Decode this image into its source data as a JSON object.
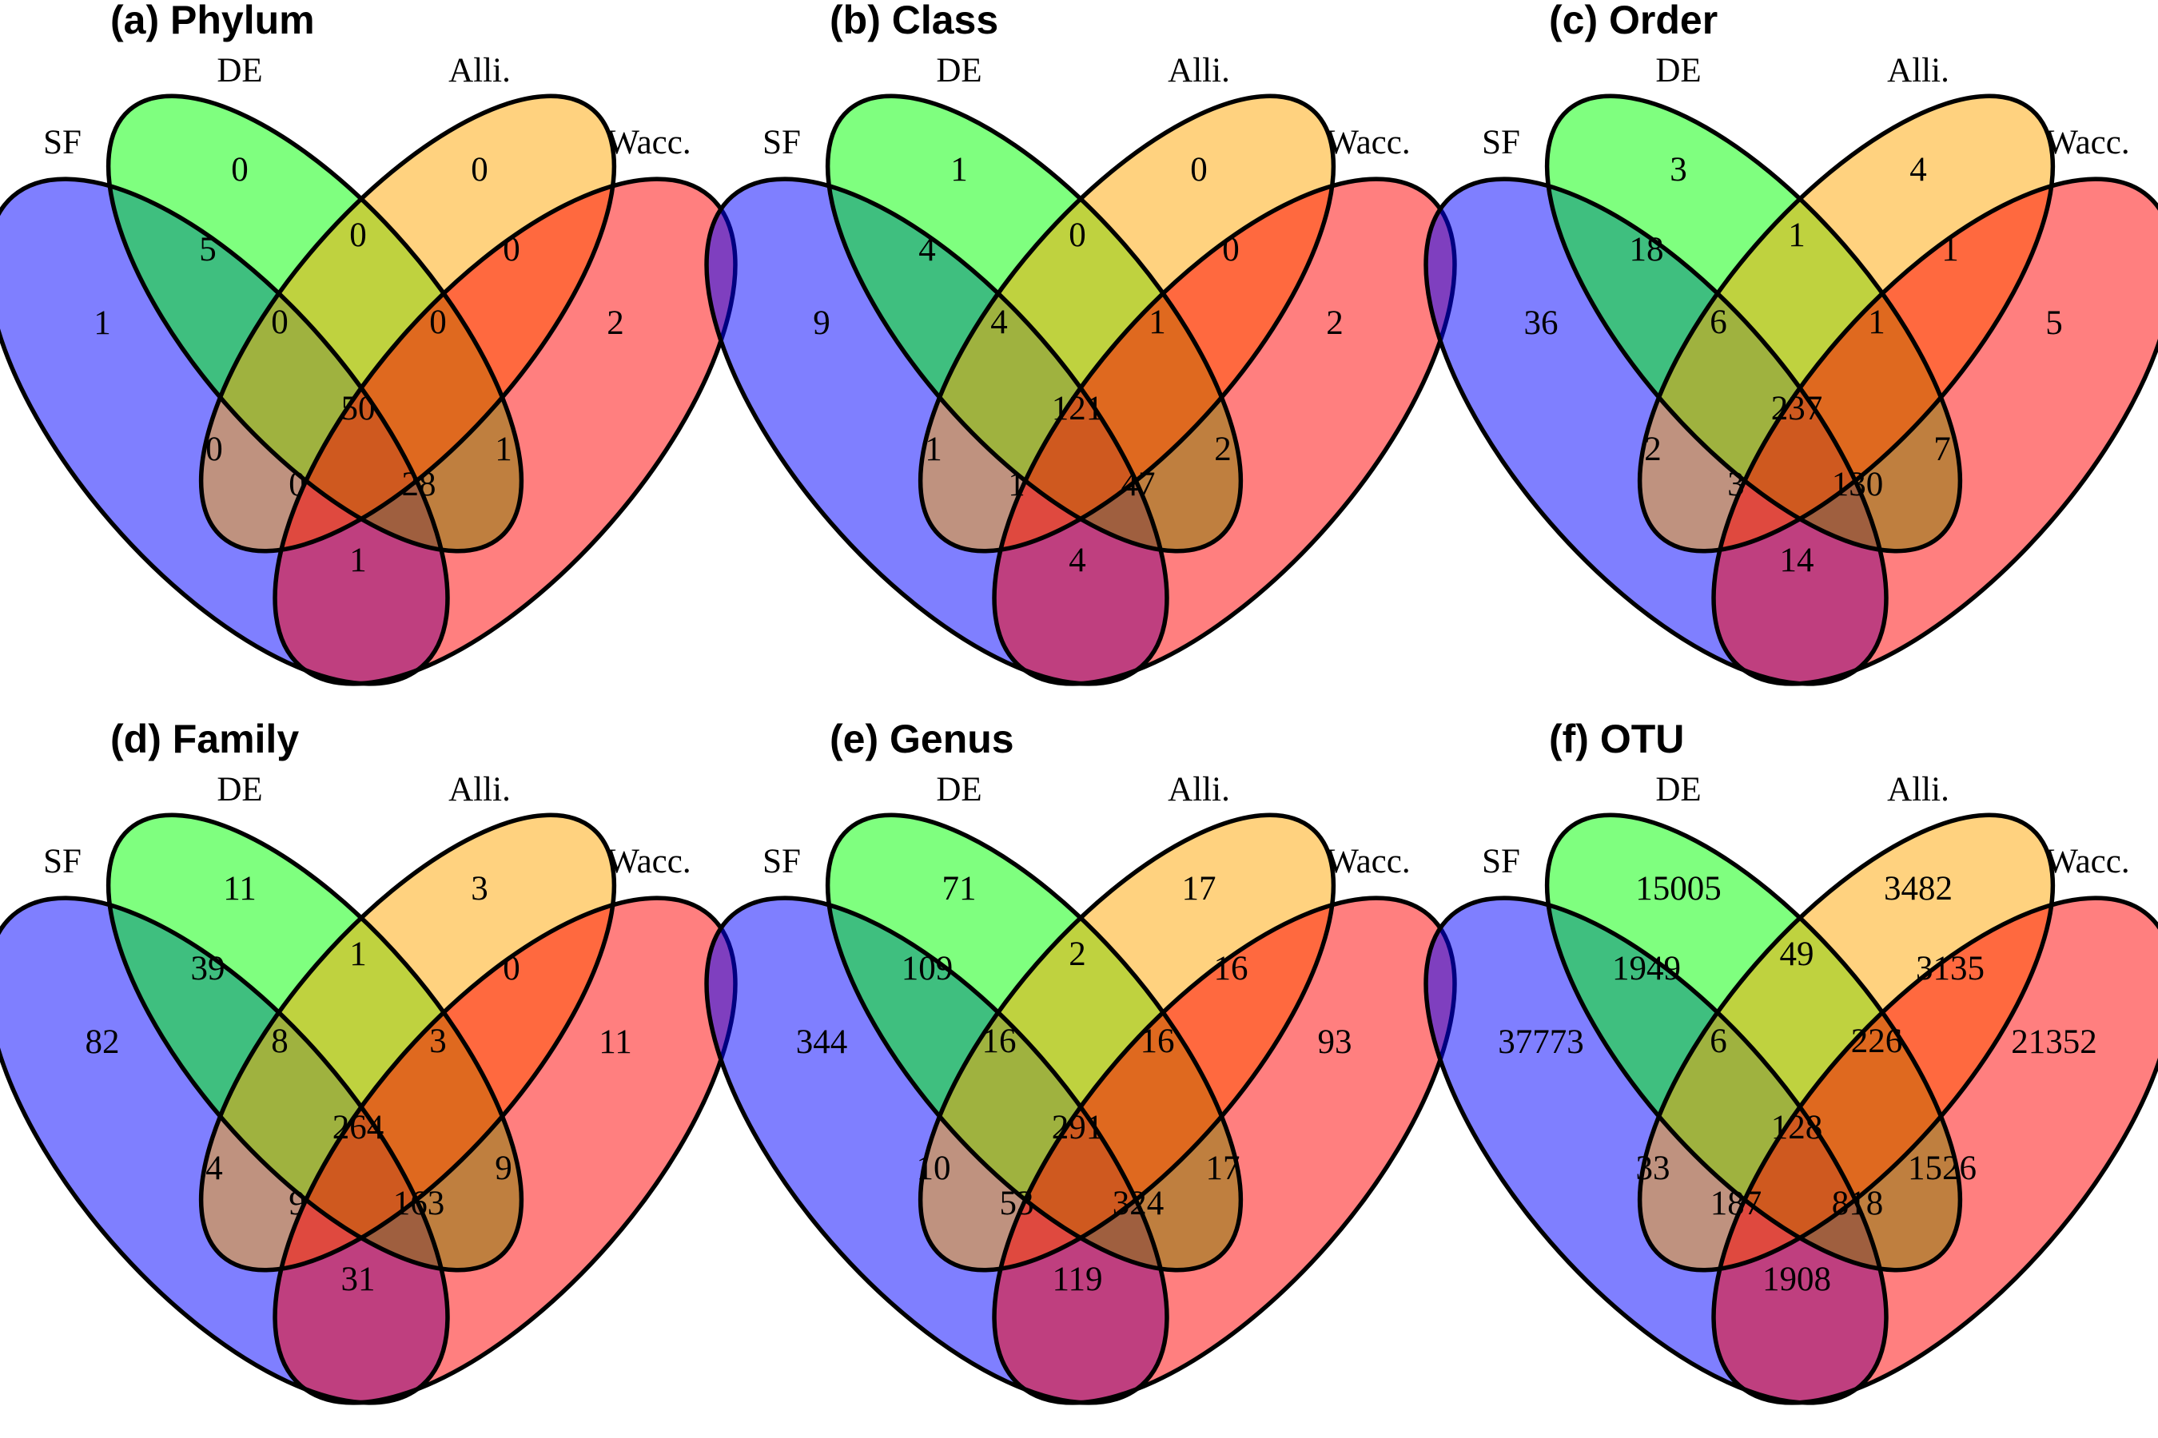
{
  "sets": [
    {
      "key": "SF",
      "label": "SF",
      "color": "#0000ff"
    },
    {
      "key": "DE",
      "label": "DE",
      "color": "#00ff00"
    },
    {
      "key": "Alli",
      "label": "Alli.",
      "color": "#ffa500"
    },
    {
      "key": "Wacc",
      "label": "Wacc.",
      "color": "#ff0000"
    }
  ],
  "fill_opacity": 0.5,
  "region_order": [
    "SF_only",
    "DE_only",
    "Alli_only",
    "Wacc_only",
    "SF_DE",
    "DE_Alli",
    "Alli_Wacc",
    "SF_Alli",
    "DE_Wacc",
    "SF_DE_Alli",
    "DE_Alli_Wacc",
    "all",
    "SF_Alli_Wacc",
    "SF_DE_Wacc",
    "SF_Wacc"
  ],
  "panels": [
    {
      "title": "(a) Phylum",
      "counts": {
        "SF_only": "1",
        "DE_only": "0",
        "Alli_only": "0",
        "Wacc_only": "2",
        "SF_DE": "5",
        "DE_Alli": "0",
        "Alli_Wacc": "0",
        "SF_Alli": "0",
        "DE_Wacc": "1",
        "SF_DE_Alli": "0",
        "DE_Alli_Wacc": "0",
        "all": "50",
        "SF_Alli_Wacc": "0",
        "SF_DE_Wacc": "28",
        "SF_Wacc": "1"
      }
    },
    {
      "title": "(b) Class",
      "counts": {
        "SF_only": "9",
        "DE_only": "1",
        "Alli_only": "0",
        "Wacc_only": "2",
        "SF_DE": "4",
        "DE_Alli": "0",
        "Alli_Wacc": "0",
        "SF_Alli": "1",
        "DE_Wacc": "2",
        "SF_DE_Alli": "4",
        "DE_Alli_Wacc": "1",
        "all": "121",
        "SF_Alli_Wacc": "1",
        "SF_DE_Wacc": "47",
        "SF_Wacc": "4"
      }
    },
    {
      "title": "(c) Order",
      "counts": {
        "SF_only": "36",
        "DE_only": "3",
        "Alli_only": "4",
        "Wacc_only": "5",
        "SF_DE": "18",
        "DE_Alli": "1",
        "Alli_Wacc": "1",
        "SF_Alli": "2",
        "DE_Wacc": "7",
        "SF_DE_Alli": "6",
        "DE_Alli_Wacc": "1",
        "all": "237",
        "SF_Alli_Wacc": "3",
        "SF_DE_Wacc": "130",
        "SF_Wacc": "14"
      }
    },
    {
      "title": "(d) Family",
      "counts": {
        "SF_only": "82",
        "DE_only": "11",
        "Alli_only": "3",
        "Wacc_only": "11",
        "SF_DE": "39",
        "DE_Alli": "1",
        "Alli_Wacc": "0",
        "SF_Alli": "4",
        "DE_Wacc": "9",
        "SF_DE_Alli": "8",
        "DE_Alli_Wacc": "3",
        "all": "264",
        "SF_Alli_Wacc": "9",
        "SF_DE_Wacc": "163",
        "SF_Wacc": "31"
      }
    },
    {
      "title": "(e) Genus",
      "counts": {
        "SF_only": "344",
        "DE_only": "71",
        "Alli_only": "17",
        "Wacc_only": "93",
        "SF_DE": "109",
        "DE_Alli": "2",
        "Alli_Wacc": "16",
        "SF_Alli": "10",
        "DE_Wacc": "17",
        "SF_DE_Alli": "16",
        "DE_Alli_Wacc": "16",
        "all": "291",
        "SF_Alli_Wacc": "53",
        "SF_DE_Wacc": "324",
        "SF_Wacc": "119"
      }
    },
    {
      "title": "(f) OTU",
      "counts": {
        "SF_only": "37773",
        "DE_only": "15005",
        "Alli_only": "3482",
        "Wacc_only": "21352",
        "SF_DE": "1949",
        "DE_Alli": "49",
        "Alli_Wacc": "3135",
        "SF_Alli": "33",
        "DE_Wacc": "1526",
        "SF_DE_Alli": "6",
        "DE_Alli_Wacc": "226",
        "all": "128",
        "SF_Alli_Wacc": "187",
        "SF_DE_Wacc": "818",
        "SF_Wacc": "1908"
      }
    }
  ]
}
